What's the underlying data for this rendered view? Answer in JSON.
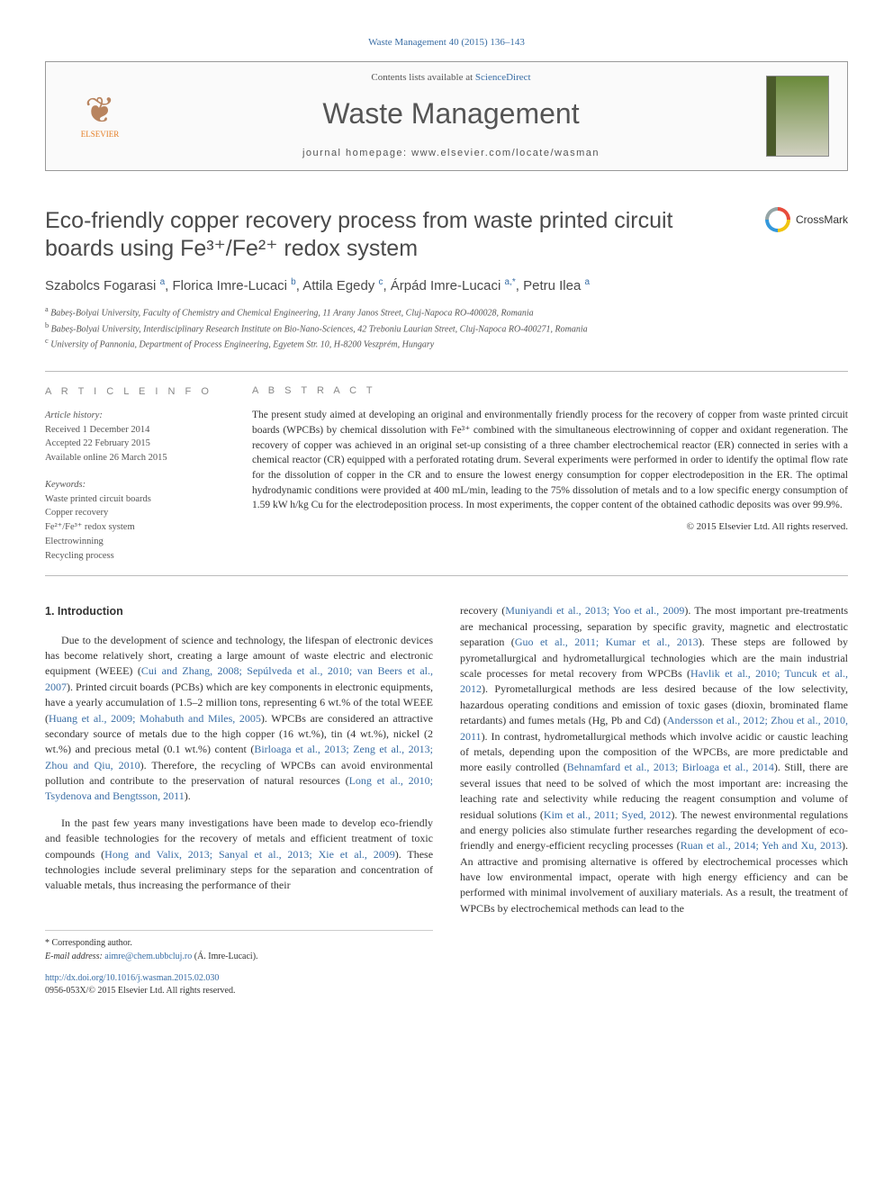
{
  "journal_ref": "Waste Management 40 (2015) 136–143",
  "header": {
    "elsevier_label": "ELSEVIER",
    "contents_prefix": "Contents lists available at ",
    "contents_link": "ScienceDirect",
    "journal_title": "Waste Management",
    "homepage_label": "journal homepage: www.elsevier.com/locate/wasman"
  },
  "title": "Eco-friendly copper recovery process from waste printed circuit boards using Fe³⁺/Fe²⁺ redox system",
  "crossmark_label": "CrossMark",
  "authors_html": "Szabolcs Fogarasi <sup>a</sup>, Florica Imre-Lucaci <sup>b</sup>, Attila Egedy <sup>c</sup>, Árpád Imre-Lucaci <sup>a,*</sup>, Petru Ilea <sup>a</sup>",
  "affiliations": [
    "a Babeș-Bolyai University, Faculty of Chemistry and Chemical Engineering, 11 Arany Janos Street, Cluj-Napoca RO-400028, Romania",
    "b Babeș-Bolyai University, Interdisciplinary Research Institute on Bio-Nano-Sciences, 42 Treboniu Laurian Street, Cluj-Napoca RO-400271, Romania",
    "c University of Pannonia, Department of Process Engineering, Egyetem Str. 10, H-8200 Veszprém, Hungary"
  ],
  "article_info": {
    "heading": "A R T I C L E   I N F O",
    "history_label": "Article history:",
    "history": [
      "Received 1 December 2014",
      "Accepted 22 February 2015",
      "Available online 26 March 2015"
    ],
    "keywords_label": "Keywords:",
    "keywords": [
      "Waste printed circuit boards",
      "Copper recovery",
      "Fe²⁺/Fe³⁺ redox system",
      "Electrowinning",
      "Recycling process"
    ]
  },
  "abstract": {
    "heading": "A B S T R A C T",
    "text": "The present study aimed at developing an original and environmentally friendly process for the recovery of copper from waste printed circuit boards (WPCBs) by chemical dissolution with Fe³⁺ combined with the simultaneous electrowinning of copper and oxidant regeneration. The recovery of copper was achieved in an original set-up consisting of a three chamber electrochemical reactor (ER) connected in series with a chemical reactor (CR) equipped with a perforated rotating drum. Several experiments were performed in order to identify the optimal flow rate for the dissolution of copper in the CR and to ensure the lowest energy consumption for copper electrodeposition in the ER. The optimal hydrodynamic conditions were provided at 400 mL/min, leading to the 75% dissolution of metals and to a low specific energy consumption of 1.59 kW h/kg Cu for the electrodeposition process. In most experiments, the copper content of the obtained cathodic deposits was over 99.9%.",
    "copyright": "© 2015 Elsevier Ltd. All rights reserved."
  },
  "sections": {
    "intro_heading": "1. Introduction",
    "col1_para1": "Due to the development of science and technology, the lifespan of electronic devices has become relatively short, creating a large amount of waste electric and electronic equipment (WEEE) (Cui and Zhang, 2008; Sepúlveda et al., 2010; van Beers et al., 2007). Printed circuit boards (PCBs) which are key components in electronic equipments, have a yearly accumulation of 1.5–2 million tons, representing 6 wt.% of the total WEEE (Huang et al., 2009; Mohabuth and Miles, 2005). WPCBs are considered an attractive secondary source of metals due to the high copper (16 wt.%), tin (4 wt.%), nickel (2 wt.%) and precious metal (0.1 wt.%) content (Birloaga et al., 2013; Zeng et al., 2013; Zhou and Qiu, 2010). Therefore, the recycling of WPCBs can avoid environmental pollution and contribute to the preservation of natural resources (Long et al., 2010; Tsydenova and Bengtsson, 2011).",
    "col1_para2": "In the past few years many investigations have been made to develop eco-friendly and feasible technologies for the recovery of metals and efficient treatment of toxic compounds (Hong and Valix, 2013; Sanyal et al., 2013; Xie et al., 2009). These technologies include several preliminary steps for the separation and concentration of valuable metals, thus increasing the performance of their",
    "col2_para1": "recovery (Muniyandi et al., 2013; Yoo et al., 2009). The most important pre-treatments are mechanical processing, separation by specific gravity, magnetic and electrostatic separation (Guo et al., 2011; Kumar et al., 2013). These steps are followed by pyrometallurgical and hydrometallurgical technologies which are the main industrial scale processes for metal recovery from WPCBs (Havlik et al., 2010; Tuncuk et al., 2012). Pyrometallurgical methods are less desired because of the low selectivity, hazardous operating conditions and emission of toxic gases (dioxin, brominated flame retardants) and fumes metals (Hg, Pb and Cd) (Andersson et al., 2012; Zhou et al., 2010, 2011). In contrast, hydrometallurgical methods which involve acidic or caustic leaching of metals, depending upon the composition of the WPCBs, are more predictable and more easily controlled (Behnamfard et al., 2013; Birloaga et al., 2014). Still, there are several issues that need to be solved of which the most important are: increasing the leaching rate and selectivity while reducing the reagent consumption and volume of residual solutions (Kim et al., 2011; Syed, 2012). The newest environmental regulations and energy policies also stimulate further researches regarding the development of eco-friendly and energy-efficient recycling processes (Ruan et al., 2014; Yeh and Xu, 2013). An attractive and promising alternative is offered by electrochemical processes which have low environmental impact, operate with high energy efficiency and can be performed with minimal involvement of auxiliary materials. As a result, the treatment of WPCBs by electrochemical methods can lead to the"
  },
  "footnotes": {
    "corr": "* Corresponding author.",
    "email_label": "E-mail address: ",
    "email": "aimre@chem.ubbcluj.ro",
    "email_who": " (Á. Imre-Lucaci)."
  },
  "footer": {
    "doi": "http://dx.doi.org/10.1016/j.wasman.2015.02.030",
    "issn": "0956-053X/© 2015 Elsevier Ltd. All rights reserved."
  },
  "refs_linked": [
    "Cui and Zhang, 2008; Sepúlveda et al., 2010; van Beers et al., 2007",
    "Huang et al., 2009; Mohabuth and Miles, 2005",
    "Birloaga et al., 2013; Zeng et al., 2013; Zhou and Qiu, 2010",
    "Long et al., 2010; Tsydenova and Bengtsson, 2011",
    "Hong and Valix, 2013; Sanyal et al., 2013; Xie et al., 2009",
    "Muniyandi et al., 2013; Yoo et al., 2009",
    "Guo et al., 2011; Kumar et al., 2013",
    "Havlik et al., 2010; Tuncuk et al., 2012",
    "Andersson et al., 2012; Zhou et al., 2010, 2011",
    "Behnamfard et al., 2013; Birloaga et al., 2014",
    "Kim et al., 2011; Syed, 2012",
    "Ruan et al., 2014; Yeh and Xu, 2013"
  ],
  "colors": {
    "link": "#3a6ea5",
    "text": "#333333",
    "muted": "#555555",
    "rule": "#bbbbbb"
  }
}
